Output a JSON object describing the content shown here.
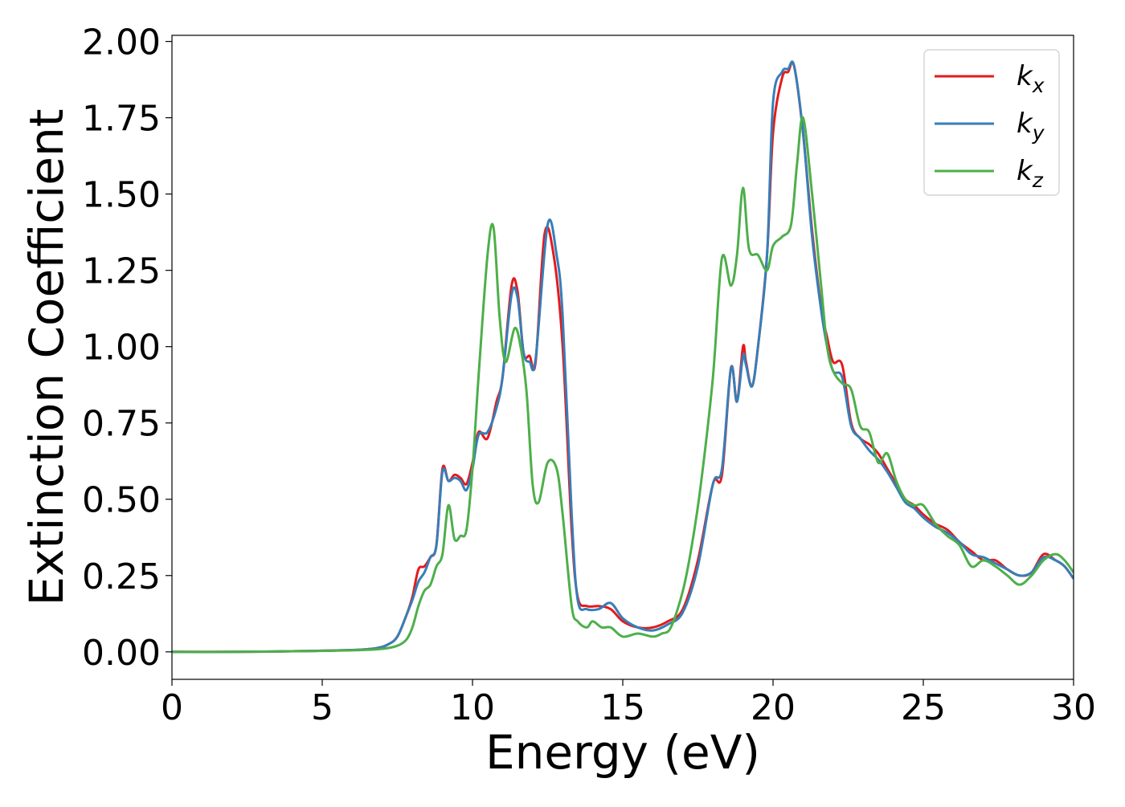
{
  "chart_data": {
    "type": "line",
    "title": "",
    "xlabel": "Energy (eV)",
    "ylabel": "Extinction Coefficient",
    "xlim": [
      0,
      30
    ],
    "ylim": [
      -0.09,
      2.02
    ],
    "xticks": [
      0,
      5,
      10,
      15,
      20,
      25,
      30
    ],
    "xtick_labels": [
      "0",
      "5",
      "10",
      "15",
      "20",
      "25",
      "30"
    ],
    "yticks": [
      0.0,
      0.25,
      0.5,
      0.75,
      1.0,
      1.25,
      1.5,
      1.75,
      2.0
    ],
    "ytick_labels": [
      "0.00",
      "0.25",
      "0.50",
      "0.75",
      "1.00",
      "1.25",
      "1.50",
      "1.75",
      "2.00"
    ],
    "grid": false,
    "legend_position": "top-right",
    "series": [
      {
        "name": "k",
        "subscript": "x",
        "color": "#e41a1c",
        "x": [
          0,
          2,
          4,
          6,
          6.8,
          7.2,
          7.5,
          7.8,
          8.0,
          8.2,
          8.4,
          8.6,
          8.8,
          9.0,
          9.2,
          9.4,
          9.6,
          9.8,
          10.0,
          10.2,
          10.5,
          10.8,
          11.0,
          11.3,
          11.5,
          11.7,
          11.9,
          12.1,
          12.4,
          12.7,
          13.0,
          13.3,
          13.5,
          13.8,
          14.2,
          14.6,
          15.0,
          15.5,
          16.0,
          16.5,
          17.0,
          17.5,
          18.0,
          18.3,
          18.6,
          18.8,
          19.0,
          19.1,
          19.3,
          19.5,
          19.8,
          20.0,
          20.3,
          20.5,
          20.7,
          21.0,
          21.3,
          21.6,
          21.8,
          22.0,
          22.3,
          22.6,
          22.9,
          23.2,
          23.5,
          23.8,
          24.1,
          24.4,
          24.7,
          25.0,
          25.4,
          25.8,
          26.2,
          26.6,
          27.0,
          27.4,
          27.8,
          28.2,
          28.6,
          29.0,
          29.4,
          29.7,
          30.0
        ],
        "y": [
          0.0,
          0.0,
          0.002,
          0.006,
          0.012,
          0.025,
          0.05,
          0.12,
          0.18,
          0.27,
          0.28,
          0.31,
          0.35,
          0.6,
          0.56,
          0.58,
          0.57,
          0.55,
          0.62,
          0.72,
          0.7,
          0.82,
          0.9,
          1.2,
          1.18,
          0.98,
          0.97,
          0.95,
          1.37,
          1.3,
          1.0,
          0.4,
          0.18,
          0.15,
          0.15,
          0.14,
          0.1,
          0.08,
          0.08,
          0.1,
          0.14,
          0.3,
          0.55,
          0.58,
          0.93,
          0.82,
          1.0,
          0.95,
          0.87,
          1.0,
          1.3,
          1.7,
          1.88,
          1.9,
          1.92,
          1.7,
          1.38,
          1.13,
          1.03,
          0.95,
          0.94,
          0.75,
          0.7,
          0.68,
          0.65,
          0.6,
          0.55,
          0.5,
          0.48,
          0.45,
          0.42,
          0.4,
          0.36,
          0.33,
          0.3,
          0.3,
          0.27,
          0.25,
          0.26,
          0.32,
          0.3,
          0.28,
          0.24
        ]
      },
      {
        "name": "k",
        "subscript": "y",
        "color": "#377eb8",
        "x": [
          0,
          2,
          4,
          6,
          6.8,
          7.2,
          7.5,
          7.8,
          8.0,
          8.2,
          8.4,
          8.6,
          8.8,
          9.0,
          9.2,
          9.4,
          9.6,
          9.8,
          10.0,
          10.2,
          10.5,
          10.8,
          11.0,
          11.3,
          11.5,
          11.7,
          11.9,
          12.1,
          12.5,
          12.8,
          13.0,
          13.3,
          13.5,
          13.8,
          14.2,
          14.6,
          15.0,
          15.5,
          16.0,
          16.5,
          17.0,
          17.5,
          18.0,
          18.3,
          18.6,
          18.8,
          19.0,
          19.1,
          19.3,
          19.5,
          19.8,
          20.0,
          20.3,
          20.5,
          20.7,
          21.0,
          21.3,
          21.6,
          21.8,
          22.0,
          22.3,
          22.6,
          22.9,
          23.2,
          23.5,
          23.8,
          24.1,
          24.4,
          24.7,
          25.0,
          25.4,
          25.8,
          26.2,
          26.6,
          27.0,
          27.4,
          27.8,
          28.2,
          28.6,
          29.0,
          29.4,
          29.7,
          30.0
        ],
        "y": [
          0.0,
          0.0,
          0.002,
          0.006,
          0.012,
          0.025,
          0.05,
          0.12,
          0.17,
          0.23,
          0.26,
          0.31,
          0.35,
          0.59,
          0.56,
          0.57,
          0.56,
          0.53,
          0.6,
          0.71,
          0.72,
          0.8,
          0.9,
          1.17,
          1.16,
          0.98,
          0.95,
          0.96,
          1.4,
          1.3,
          1.1,
          0.45,
          0.17,
          0.14,
          0.14,
          0.16,
          0.11,
          0.08,
          0.07,
          0.09,
          0.13,
          0.28,
          0.55,
          0.6,
          0.93,
          0.82,
          0.97,
          0.94,
          0.87,
          1.0,
          1.3,
          1.8,
          1.9,
          1.91,
          1.92,
          1.7,
          1.36,
          1.12,
          1.0,
          0.92,
          0.9,
          0.74,
          0.7,
          0.66,
          0.63,
          0.59,
          0.54,
          0.49,
          0.47,
          0.44,
          0.41,
          0.39,
          0.36,
          0.32,
          0.31,
          0.29,
          0.27,
          0.25,
          0.26,
          0.31,
          0.3,
          0.28,
          0.24
        ]
      },
      {
        "name": "k",
        "subscript": "z",
        "color": "#4daf4a",
        "x": [
          0,
          2,
          4,
          6,
          7.0,
          7.5,
          7.8,
          8.0,
          8.2,
          8.4,
          8.6,
          8.8,
          9.0,
          9.2,
          9.4,
          9.6,
          9.8,
          10.0,
          10.2,
          10.5,
          10.7,
          10.9,
          11.1,
          11.4,
          11.6,
          11.8,
          12.0,
          12.2,
          12.5,
          12.8,
          13.0,
          13.3,
          13.5,
          13.8,
          14.0,
          14.3,
          14.6,
          15.0,
          15.5,
          16.0,
          16.3,
          16.6,
          17.0,
          17.3,
          17.6,
          18.0,
          18.3,
          18.6,
          18.8,
          19.0,
          19.2,
          19.5,
          19.8,
          20.0,
          20.3,
          20.6,
          20.8,
          21.0,
          21.3,
          21.6,
          21.8,
          22.0,
          22.3,
          22.6,
          22.9,
          23.2,
          23.5,
          23.8,
          24.1,
          24.4,
          24.7,
          25.0,
          25.4,
          25.8,
          26.2,
          26.6,
          27.0,
          27.4,
          27.8,
          28.2,
          28.6,
          29.0,
          29.4,
          29.7,
          30.0
        ],
        "y": [
          0.0,
          0.0,
          0.002,
          0.005,
          0.01,
          0.02,
          0.04,
          0.08,
          0.15,
          0.2,
          0.22,
          0.28,
          0.32,
          0.48,
          0.37,
          0.38,
          0.4,
          0.6,
          0.9,
          1.3,
          1.39,
          1.1,
          0.95,
          1.06,
          1.0,
          0.85,
          0.55,
          0.49,
          0.62,
          0.6,
          0.45,
          0.15,
          0.1,
          0.08,
          0.1,
          0.08,
          0.08,
          0.05,
          0.06,
          0.05,
          0.06,
          0.08,
          0.2,
          0.35,
          0.55,
          0.9,
          1.29,
          1.2,
          1.3,
          1.52,
          1.32,
          1.3,
          1.25,
          1.33,
          1.36,
          1.4,
          1.6,
          1.75,
          1.5,
          1.2,
          1.0,
          0.92,
          0.88,
          0.86,
          0.74,
          0.72,
          0.62,
          0.65,
          0.56,
          0.5,
          0.48,
          0.48,
          0.42,
          0.38,
          0.35,
          0.28,
          0.3,
          0.28,
          0.25,
          0.22,
          0.25,
          0.3,
          0.32,
          0.3,
          0.26
        ]
      }
    ]
  }
}
